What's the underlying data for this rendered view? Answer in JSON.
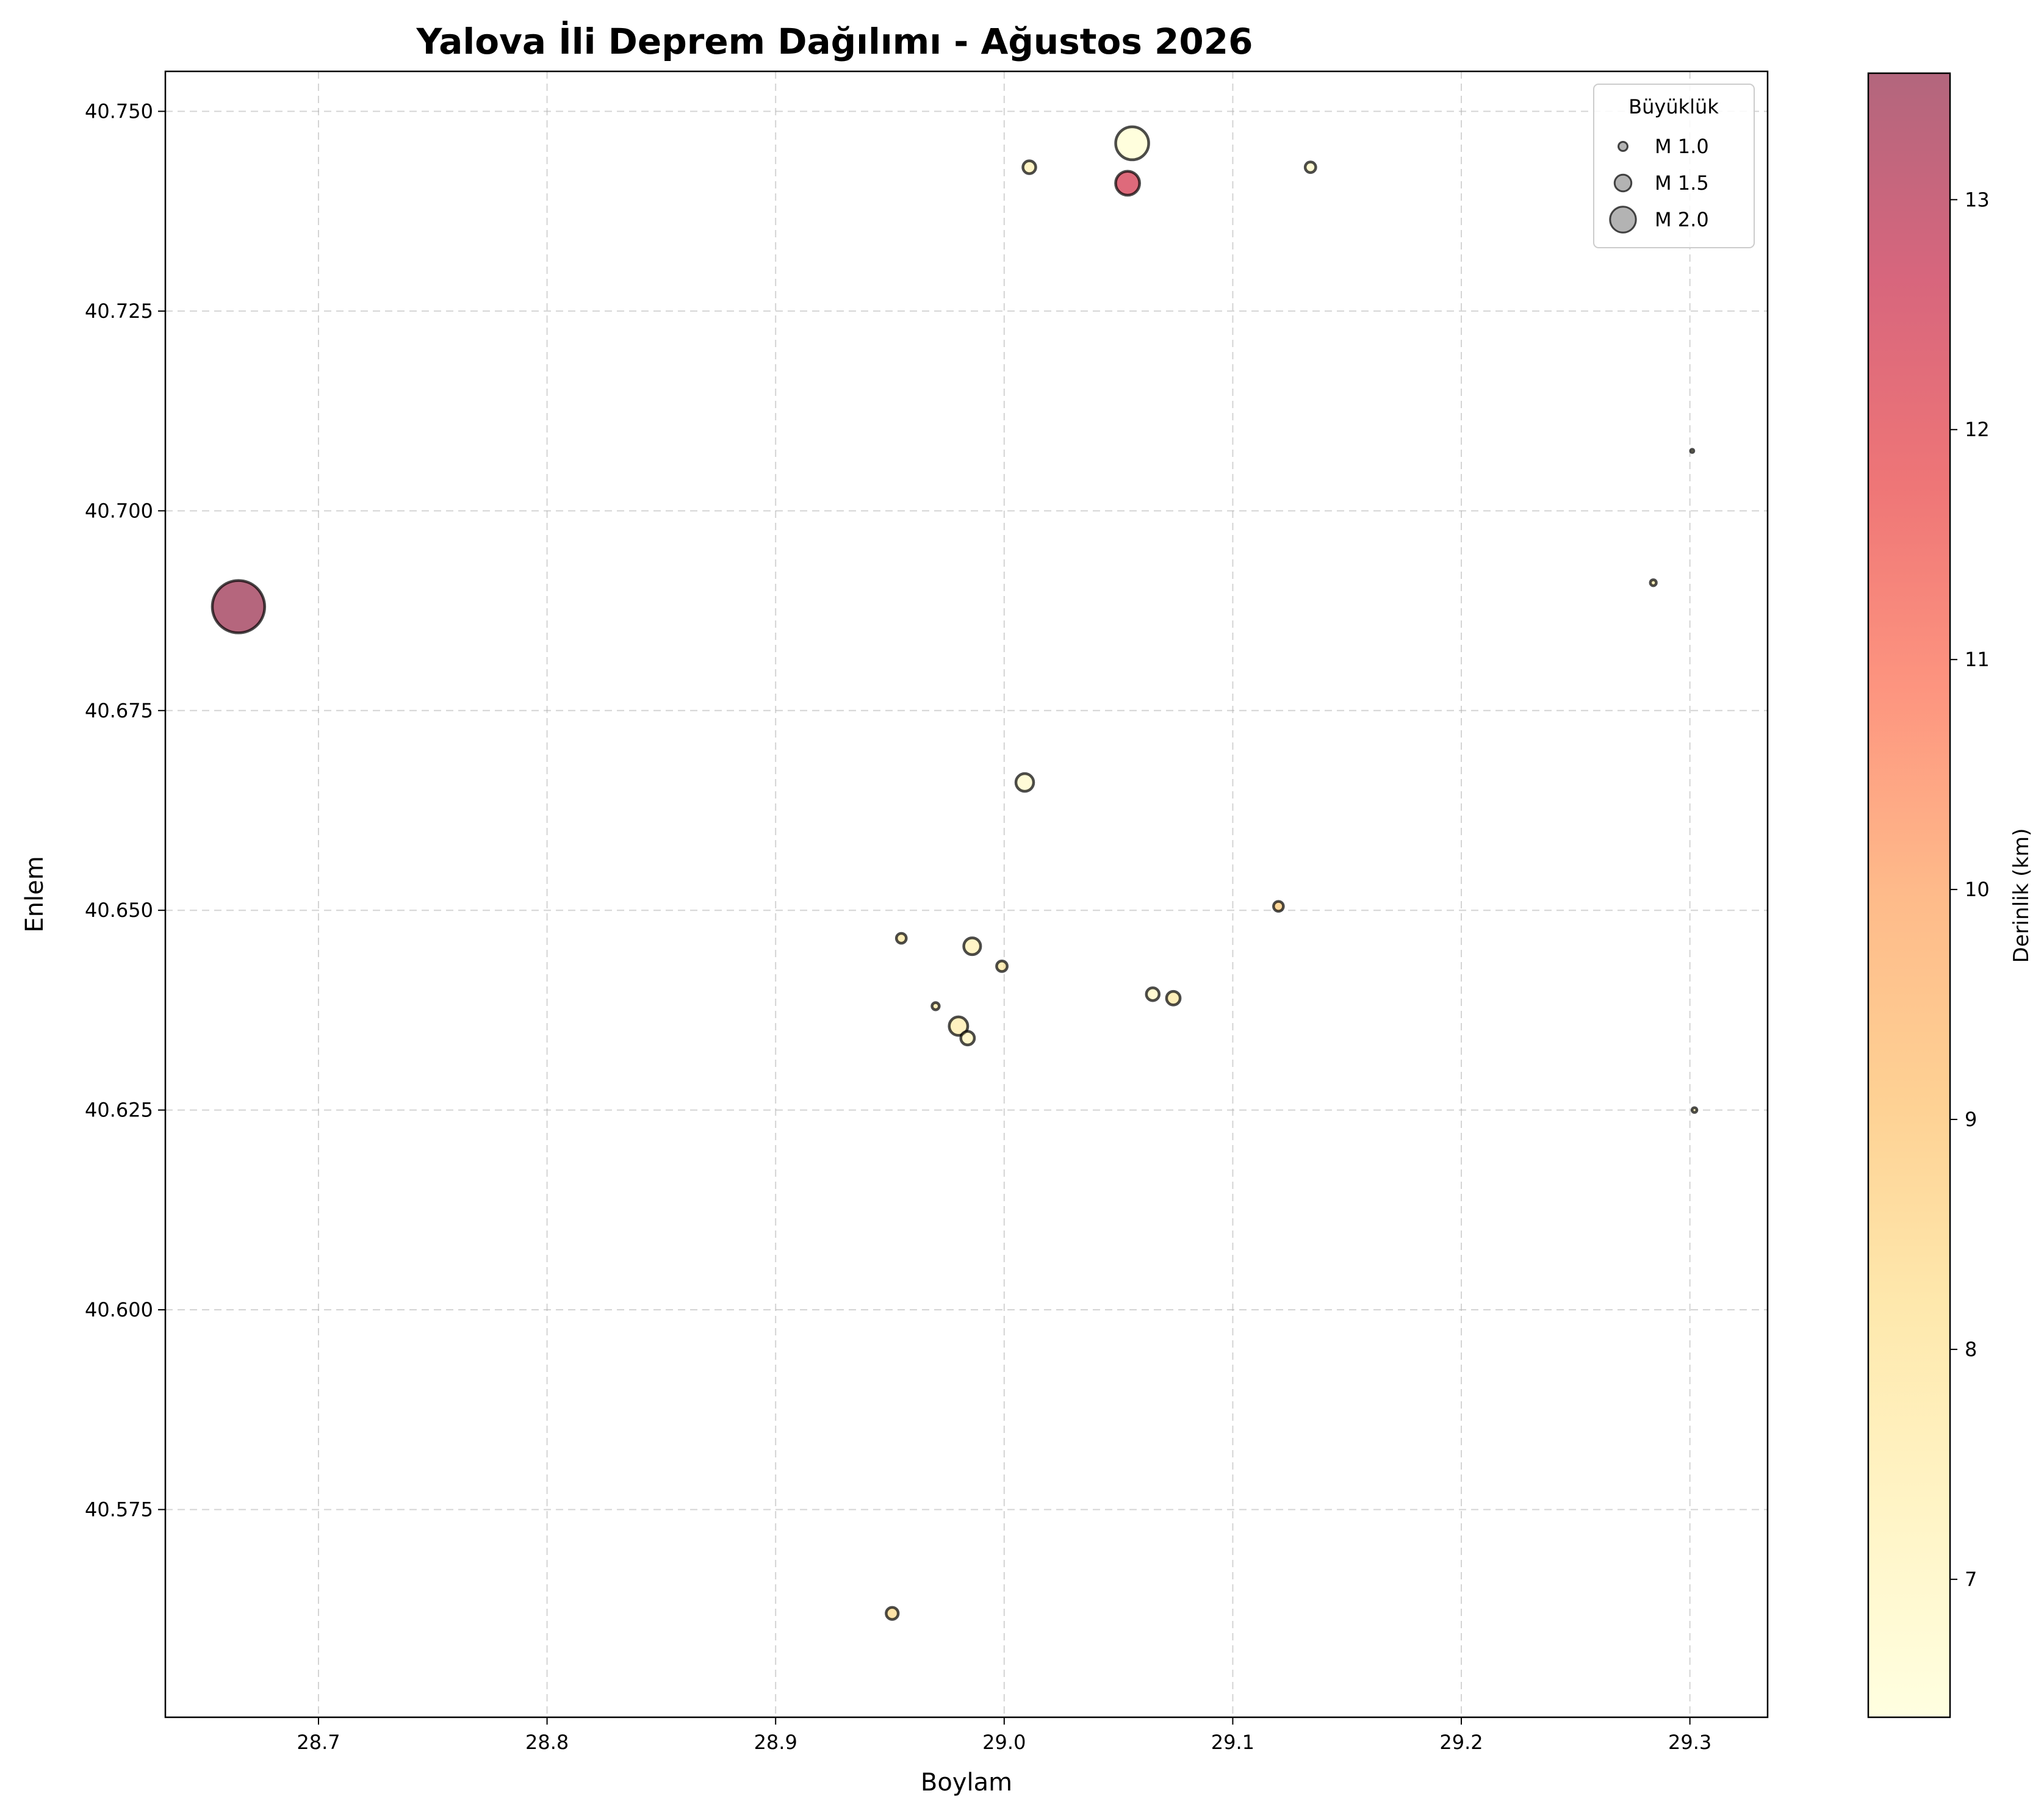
{
  "chart_data": {
    "type": "scatter",
    "title": "Yalova İli Deprem Dağılımı - Ağustos 2026",
    "xlabel": "Boylam",
    "ylabel": "Enlem",
    "xlim": [
      28.633,
      29.334
    ],
    "ylim": [
      40.549,
      40.755
    ],
    "x_ticks": [
      "28.7",
      "28.8",
      "28.9",
      "29.0",
      "29.1",
      "29.2",
      "29.3"
    ],
    "y_ticks": [
      "40.575",
      "40.600",
      "40.625",
      "40.650",
      "40.675",
      "40.700",
      "40.725",
      "40.750"
    ],
    "grid": true,
    "colormap": "YlOrRd",
    "colorbar": {
      "label": "Derinlik (km)",
      "range": [
        6.4,
        13.55
      ],
      "ticks": [
        "7",
        "8",
        "9",
        "10",
        "11",
        "12",
        "13"
      ]
    },
    "legend": {
      "title": "Büyüklük",
      "position": "top-right",
      "entries": [
        {
          "label": "M 1.0",
          "magnitude": 1.0
        },
        {
          "label": "M 1.5",
          "magnitude": 1.5
        },
        {
          "label": "M 2.0",
          "magnitude": 2.0
        }
      ]
    },
    "points": [
      {
        "x": 28.665,
        "y": 40.688,
        "magnitude": 3.2,
        "depth": 13.5
      },
      {
        "x": 29.056,
        "y": 40.746,
        "magnitude": 2.35,
        "depth": 6.5
      },
      {
        "x": 29.054,
        "y": 40.741,
        "magnitude": 1.9,
        "depth": 12.4
      },
      {
        "x": 29.011,
        "y": 40.743,
        "magnitude": 1.25,
        "depth": 7.3
      },
      {
        "x": 29.134,
        "y": 40.743,
        "magnitude": 1.1,
        "depth": 6.8
      },
      {
        "x": 29.301,
        "y": 40.7075,
        "magnitude": 0.5,
        "depth": 6.7
      },
      {
        "x": 29.284,
        "y": 40.691,
        "magnitude": 0.75,
        "depth": 7.6
      },
      {
        "x": 29.009,
        "y": 40.666,
        "magnitude": 1.55,
        "depth": 6.7
      },
      {
        "x": 29.12,
        "y": 40.6505,
        "magnitude": 1.05,
        "depth": 8.8
      },
      {
        "x": 28.955,
        "y": 40.6465,
        "magnitude": 1.05,
        "depth": 7.8
      },
      {
        "x": 28.986,
        "y": 40.6455,
        "magnitude": 1.5,
        "depth": 7.3
      },
      {
        "x": 28.999,
        "y": 40.643,
        "magnitude": 1.1,
        "depth": 7.8
      },
      {
        "x": 29.065,
        "y": 40.6395,
        "magnitude": 1.25,
        "depth": 6.9
      },
      {
        "x": 29.074,
        "y": 40.639,
        "magnitude": 1.3,
        "depth": 7.8
      },
      {
        "x": 28.97,
        "y": 40.638,
        "magnitude": 0.85,
        "depth": 7.7
      },
      {
        "x": 28.98,
        "y": 40.6355,
        "magnitude": 1.6,
        "depth": 7.5
      },
      {
        "x": 28.984,
        "y": 40.634,
        "magnitude": 1.3,
        "depth": 7.1
      },
      {
        "x": 29.302,
        "y": 40.625,
        "magnitude": 0.65,
        "depth": 7.0
      },
      {
        "x": 28.951,
        "y": 40.562,
        "magnitude": 1.2,
        "depth": 8.4
      }
    ]
  }
}
